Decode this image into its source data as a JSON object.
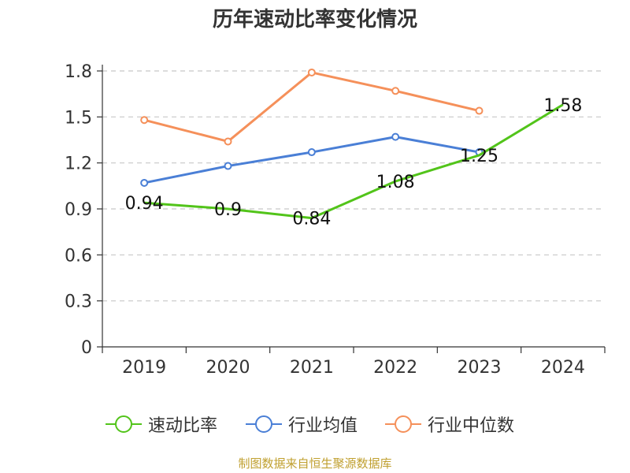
{
  "chart_data": {
    "type": "line",
    "title": "历年速动比率变化情况",
    "categories": [
      "2019",
      "2020",
      "2021",
      "2022",
      "2023",
      "2024"
    ],
    "ylim": [
      0,
      1.8
    ],
    "yticks": [
      0,
      0.3,
      0.6,
      0.9,
      1.2,
      1.5,
      1.8
    ],
    "ytick_labels": [
      "0",
      "0.3",
      "0.6",
      "0.9",
      "1.2",
      "1.5",
      "1.8"
    ],
    "grid": true,
    "legend_position": "bottom",
    "series": [
      {
        "name": "速动比率",
        "color": "#52c41a",
        "values": [
          0.94,
          0.9,
          0.84,
          1.08,
          1.25,
          1.58
        ],
        "labels": [
          "0.94",
          "0.9",
          "0.84",
          "1.08",
          "1.25",
          "1.58"
        ],
        "show_markers": false,
        "show_labels": true
      },
      {
        "name": "行业均值",
        "color": "#4a7fd6",
        "values": [
          1.07,
          1.18,
          1.27,
          1.37,
          1.27,
          null
        ],
        "show_markers": true,
        "show_labels": false
      },
      {
        "name": "行业中位数",
        "color": "#f5905a",
        "values": [
          1.48,
          1.34,
          1.79,
          1.67,
          1.54,
          null
        ],
        "show_markers": true,
        "show_labels": false
      }
    ]
  },
  "footer": "制图数据来自恒生聚源数据库"
}
